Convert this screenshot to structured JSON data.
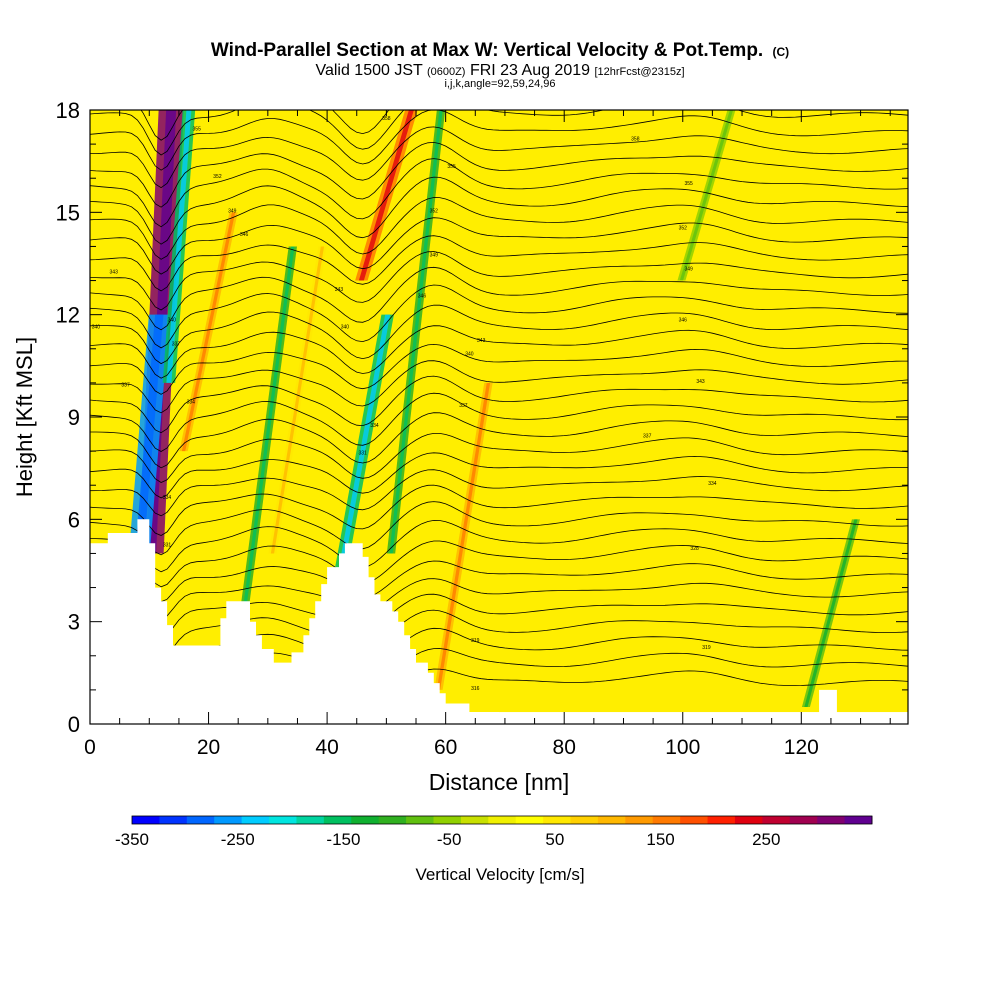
{
  "chart_data": {
    "type": "heatmap",
    "title": "Wind-Parallel Section at Max W: Vertical Velocity & Pot.Temp.",
    "title_suffix": "(C)",
    "subtitle_parts": [
      "Valid 1500 JST",
      "(0600Z)",
      "FRI 23 Aug 2019",
      "[12hrFcst@2315z]"
    ],
    "subtitle2": "i,j,k,angle=92,59,24,96",
    "xlabel": "Distance [nm]",
    "ylabel": "Height [Kft MSL]",
    "xlim": [
      0,
      138
    ],
    "ylim": [
      0,
      18
    ],
    "x_ticks": [
      "0",
      "20",
      "40",
      "60",
      "80",
      "100",
      "120"
    ],
    "y_ticks": [
      "0",
      "3",
      "6",
      "9",
      "12",
      "15",
      "18"
    ],
    "colorbar": {
      "label": "Vertical Velocity [cm/s]",
      "ticks": [
        "-350",
        "-250",
        "-150",
        "-50",
        "50",
        "150",
        "250"
      ],
      "range": [
        -350,
        350
      ],
      "colors": [
        "#0000ff",
        "#0033ff",
        "#0066ff",
        "#0099ff",
        "#00ccff",
        "#00e5e0",
        "#00d4a0",
        "#00c060",
        "#10b030",
        "#30b020",
        "#60c010",
        "#90d000",
        "#c8e000",
        "#f0f000",
        "#ffff00",
        "#ffe800",
        "#ffd000",
        "#ffb800",
        "#ff9a00",
        "#ff7a00",
        "#ff5000",
        "#ff2000",
        "#e00010",
        "#c00030",
        "#a00050",
        "#800070",
        "#600090"
      ]
    },
    "grid": false,
    "w_features_cm_s": [
      {
        "x": 12,
        "z_range": [
          5,
          18
        ],
        "w": 300
      },
      {
        "x": 10,
        "z_range": [
          5,
          12
        ],
        "w": -250
      },
      {
        "x": 15,
        "z_range": [
          10,
          18
        ],
        "w": -150
      },
      {
        "x": 20,
        "z_range": [
          8,
          15
        ],
        "w": 100
      },
      {
        "x": 30,
        "z_range": [
          3,
          14
        ],
        "w": -100
      },
      {
        "x": 35,
        "z_range": [
          5,
          14
        ],
        "w": 60
      },
      {
        "x": 46,
        "z_range": [
          4,
          12
        ],
        "w": -150
      },
      {
        "x": 50,
        "z_range": [
          13,
          18
        ],
        "w": 150
      },
      {
        "x": 55,
        "z_range": [
          5,
          18
        ],
        "w": -100
      },
      {
        "x": 63,
        "z_range": [
          1,
          10
        ],
        "w": 100
      },
      {
        "x": 104,
        "z_range": [
          13,
          18
        ],
        "w": -50
      },
      {
        "x": 125,
        "z_range": [
          0.5,
          6
        ],
        "w": -80
      }
    ],
    "contour_labels": [
      {
        "x": 18,
        "y": 17.4,
        "text": "355"
      },
      {
        "x": 21.5,
        "y": 16.0,
        "text": "352"
      },
      {
        "x": 24,
        "y": 15.0,
        "text": "349"
      },
      {
        "x": 26,
        "y": 14.3,
        "text": "346"
      },
      {
        "x": 4,
        "y": 13.2,
        "text": "343"
      },
      {
        "x": 1,
        "y": 11.6,
        "text": "340"
      },
      {
        "x": 6,
        "y": 9.9,
        "text": "337"
      },
      {
        "x": 42,
        "y": 12.7,
        "text": "343"
      },
      {
        "x": 43,
        "y": 11.6,
        "text": "340"
      },
      {
        "x": 48,
        "y": 8.7,
        "text": "334"
      },
      {
        "x": 46,
        "y": 7.9,
        "text": "331"
      },
      {
        "x": 50,
        "y": 17.7,
        "text": "358"
      },
      {
        "x": 61,
        "y": 16.3,
        "text": "355"
      },
      {
        "x": 58,
        "y": 15.0,
        "text": "352"
      },
      {
        "x": 58,
        "y": 13.7,
        "text": "349"
      },
      {
        "x": 56,
        "y": 12.5,
        "text": "346"
      },
      {
        "x": 66,
        "y": 11.2,
        "text": "343"
      },
      {
        "x": 64,
        "y": 10.8,
        "text": "340"
      },
      {
        "x": 63,
        "y": 9.3,
        "text": "337"
      },
      {
        "x": 92,
        "y": 17.1,
        "text": "358"
      },
      {
        "x": 101,
        "y": 15.8,
        "text": "355"
      },
      {
        "x": 100,
        "y": 14.5,
        "text": "352"
      },
      {
        "x": 101,
        "y": 13.3,
        "text": "349"
      },
      {
        "x": 100,
        "y": 11.8,
        "text": "346"
      },
      {
        "x": 103,
        "y": 10.0,
        "text": "343"
      },
      {
        "x": 94,
        "y": 8.4,
        "text": "337"
      },
      {
        "x": 105,
        "y": 7.0,
        "text": "334"
      },
      {
        "x": 102,
        "y": 5.1,
        "text": "328"
      },
      {
        "x": 104,
        "y": 2.2,
        "text": "319"
      },
      {
        "x": 13,
        "y": 5.2,
        "text": "331"
      },
      {
        "x": 13,
        "y": 6.6,
        "text": "334"
      },
      {
        "x": 13.8,
        "y": 11.8,
        "text": "340"
      },
      {
        "x": 14.5,
        "y": 11.1,
        "text": "337"
      },
      {
        "x": 17,
        "y": 9.4,
        "text": "334"
      },
      {
        "x": 65,
        "y": 1.0,
        "text": "316"
      },
      {
        "x": 65,
        "y": 2.4,
        "text": "319"
      }
    ]
  }
}
